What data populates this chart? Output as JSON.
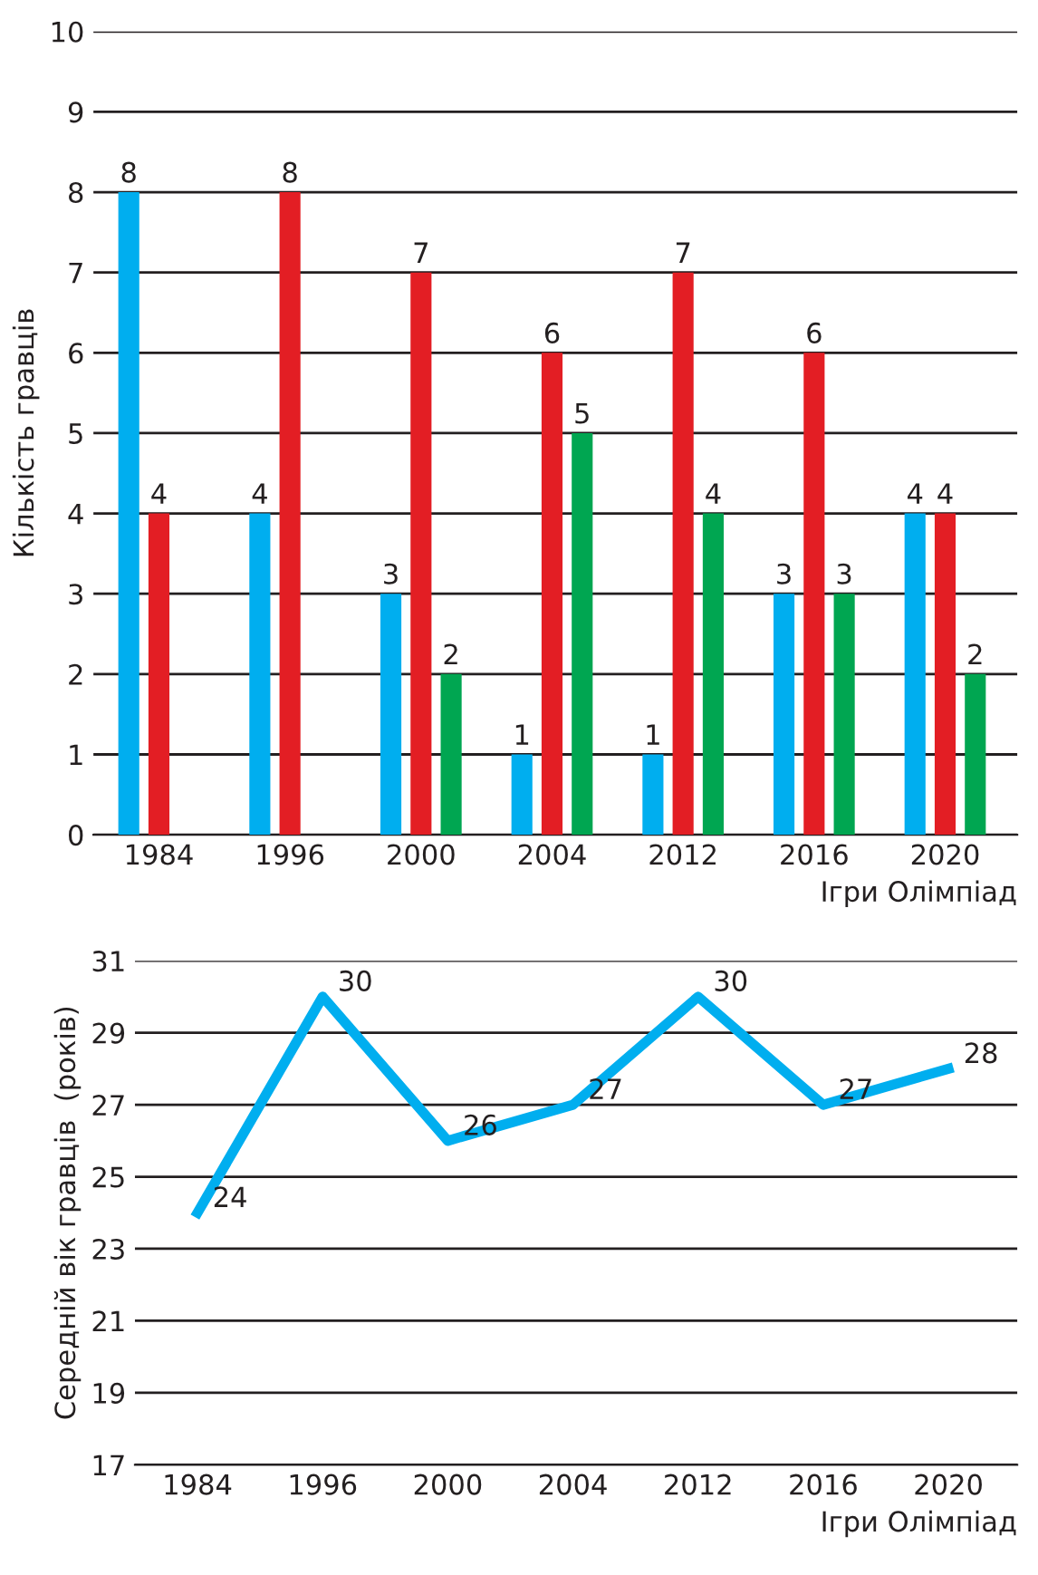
{
  "chart_data": [
    {
      "type": "bar",
      "ylabel": "Кількість гравців",
      "xlabel": "Ігри Олімпіад",
      "categories": [
        "1984",
        "1996",
        "2000",
        "2004",
        "2012",
        "2016",
        "2020"
      ],
      "series": [
        {
          "color": "#00aeef",
          "values": [
            8,
            4,
            3,
            1,
            1,
            3,
            4
          ]
        },
        {
          "color": "#e31e24",
          "values": [
            4,
            8,
            7,
            6,
            7,
            6,
            4
          ]
        },
        {
          "color": "#00a651",
          "values": [
            null,
            null,
            2,
            5,
            4,
            3,
            2
          ]
        }
      ],
      "ylim": [
        0,
        10
      ],
      "yticks": [
        0,
        1,
        2,
        3,
        4,
        5,
        6,
        7,
        8,
        9,
        10
      ],
      "grid": "y",
      "data_labels": true,
      "legend": false
    },
    {
      "type": "line",
      "ylabel": "Середній вік гравців  (років)",
      "xlabel": "Ігри Олімпіад",
      "categories": [
        "1984",
        "1996",
        "2000",
        "2004",
        "2012",
        "2016",
        "2020"
      ],
      "series": [
        {
          "color": "#00aeef",
          "values": [
            24,
            30,
            26,
            27,
            30,
            27,
            28
          ]
        }
      ],
      "ylim": [
        17,
        31
      ],
      "yticks": [
        17,
        19,
        21,
        23,
        25,
        27,
        29,
        31
      ],
      "grid": "y",
      "data_labels": true,
      "legend": false,
      "marker": "none",
      "line_style": "solid"
    }
  ]
}
